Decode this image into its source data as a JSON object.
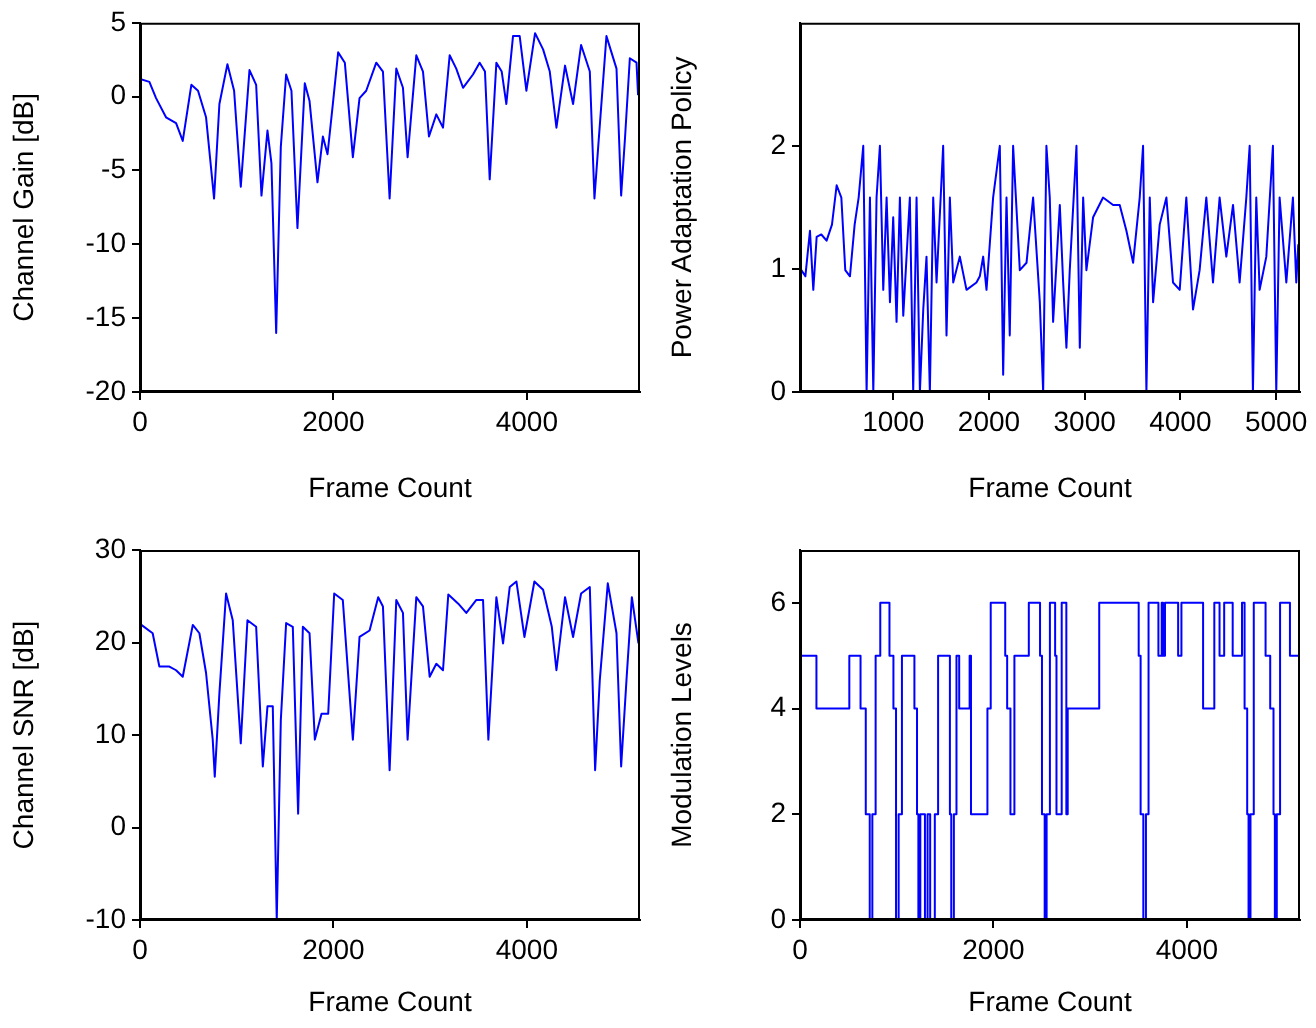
{
  "chart_data": [
    {
      "type": "line",
      "xlabel": "Frame Count",
      "ylabel": "Channel Gain [dB]",
      "marker": "none",
      "xlim": [
        0,
        5170
      ],
      "ylim": [
        -20,
        5
      ],
      "xticks": [
        0,
        2000,
        4000
      ],
      "yticks": [
        -20,
        -15,
        -10,
        -5,
        0,
        5
      ],
      "series": [
        {
          "color": "#0000ff",
          "x": [
            0,
            97,
            166,
            269,
            373,
            442,
            531,
            600,
            683,
            766,
            821,
            904,
            973,
            1042,
            1132,
            1201,
            1256,
            1318,
            1359,
            1408,
            1456,
            1511,
            1566,
            1628,
            1704,
            1753,
            1835,
            1891,
            1939,
            1994,
            2049,
            2118,
            2201,
            2270,
            2339,
            2443,
            2512,
            2581,
            2650,
            2719,
            2767,
            2857,
            2926,
            2988,
            3064,
            3133,
            3202,
            3270,
            3340,
            3443,
            3512,
            3567,
            3616,
            3685,
            3740,
            3788,
            3857,
            3926,
            3995,
            4085,
            4168,
            4237,
            4306,
            4395,
            4478,
            4561,
            4651,
            4699,
            4740,
            4823,
            4927,
            4975,
            5016,
            5065,
            5134,
            5150
          ],
          "values": [
            1.2,
            1.0,
            -0.1,
            -1.4,
            -1.8,
            -3.0,
            0.8,
            0.4,
            -1.4,
            -6.9,
            -0.5,
            2.2,
            0.4,
            -6.1,
            1.8,
            0.8,
            -6.7,
            -2.3,
            -4.5,
            -16,
            -3.4,
            1.5,
            0.4,
            -8.9,
            0.9,
            -0.3,
            -5.8,
            -2.7,
            -3.9,
            -0.5,
            3.0,
            2.3,
            -4.1,
            -0.1,
            0.4,
            2.3,
            1.7,
            -6.9,
            1.9,
            0.6,
            -4.1,
            2.8,
            1.7,
            -2.7,
            -1.2,
            -2.1,
            2.8,
            1.9,
            0.6,
            1.5,
            2.3,
            1.7,
            -5.6,
            2.3,
            1.7,
            -0.5,
            4.1,
            4.1,
            0.4,
            4.3,
            3.2,
            1.7,
            -2.1,
            2.1,
            -0.5,
            3.5,
            1.7,
            -6.9,
            -3.2,
            4.1,
            1.9,
            -6.7,
            -2.7,
            2.6,
            2.3,
            0.1
          ]
        }
      ]
    },
    {
      "type": "line",
      "xlabel": "Frame Count",
      "ylabel": "Power Adaptation Policy",
      "marker": "none",
      "xlim": [
        25,
        5250
      ],
      "ylim": [
        0,
        3
      ],
      "xticks": [
        1000,
        2000,
        3000,
        4000,
        5000
      ],
      "yticks": [
        0,
        1,
        2
      ],
      "series": [
        {
          "color": "#0000ff",
          "x": [
            39,
            81,
            129,
            164,
            199,
            248,
            303,
            359,
            408,
            457,
            498,
            547,
            596,
            638,
            686,
            721,
            756,
            791,
            825,
            860,
            895,
            930,
            965,
            999,
            1034,
            1069,
            1104,
            1173,
            1208,
            1243,
            1278,
            1313,
            1347,
            1382,
            1417,
            1452,
            1521,
            1556,
            1591,
            1626,
            1695,
            1765,
            1869,
            1904,
            1939,
            1974,
            2043,
            2113,
            2148,
            2183,
            2217,
            2252,
            2322,
            2392,
            2461,
            2531,
            2566,
            2600,
            2635,
            2670,
            2740,
            2775,
            2809,
            2844,
            2914,
            2949,
            2984,
            3018,
            3088,
            3192,
            3297,
            3366,
            3436,
            3506,
            3575,
            3610,
            3645,
            3680,
            3715,
            3784,
            3854,
            3923,
            3993,
            4062,
            4132,
            4201,
            4271,
            4341,
            4410,
            4480,
            4550,
            4619,
            4689,
            4724,
            4758,
            4793,
            4828,
            4898,
            4967,
            5002,
            5037,
            5107,
            5176,
            5211,
            5232
          ],
          "values": [
            0.99,
            0.94,
            1.31,
            0.83,
            1.26,
            1.28,
            1.23,
            1.36,
            1.68,
            1.58,
            0.99,
            0.94,
            1.36,
            1.58,
            2,
            0,
            1.58,
            0,
            1.58,
            2,
            0.83,
            1.58,
            0.73,
            1.42,
            0.57,
            1.58,
            0.62,
            1.58,
            0,
            1.58,
            0,
            0.67,
            1.1,
            0,
            1.58,
            0.89,
            2,
            0.46,
            1.58,
            0.89,
            1.1,
            0.83,
            0.89,
            0.94,
            1.1,
            0.83,
            1.58,
            2,
            0.14,
            1.58,
            0.46,
            2,
            0.99,
            1.05,
            1.58,
            0.73,
            0,
            2,
            1.58,
            0.57,
            1.52,
            0.89,
            0.36,
            0.99,
            2,
            0.36,
            1.58,
            0.99,
            1.42,
            1.58,
            1.52,
            1.52,
            1.31,
            1.05,
            1.58,
            2,
            0,
            1.58,
            0.73,
            1.36,
            1.58,
            0.89,
            0.83,
            1.58,
            0.67,
            0.99,
            1.58,
            0.89,
            1.58,
            1.1,
            1.52,
            0.89,
            1.58,
            2,
            0,
            1.58,
            0.83,
            1.1,
            2,
            0,
            1.58,
            0.89,
            1.58,
            0.89,
            1.2
          ]
        }
      ]
    },
    {
      "type": "line",
      "xlabel": "Frame Count",
      "ylabel": "Channel SNR [dB]",
      "marker": "none",
      "xlim": [
        0,
        5170
      ],
      "ylim": [
        -10,
        30
      ],
      "xticks": [
        0,
        2000,
        4000
      ],
      "yticks": [
        -10,
        0,
        10,
        20,
        30
      ],
      "series": [
        {
          "color": "#0000ff",
          "x": [
            14,
            131,
            200,
            304,
            373,
            442,
            546,
            614,
            683,
            752,
            773,
            821,
            890,
            959,
            1042,
            1111,
            1201,
            1270,
            1318,
            1373,
            1414,
            1456,
            1511,
            1580,
            1635,
            1684,
            1753,
            1808,
            1877,
            1946,
            2008,
            2097,
            2201,
            2270,
            2374,
            2463,
            2512,
            2581,
            2650,
            2719,
            2767,
            2857,
            2926,
            2995,
            3064,
            3133,
            3188,
            3291,
            3374,
            3478,
            3547,
            3602,
            3685,
            3754,
            3823,
            3892,
            3975,
            4078,
            4168,
            4258,
            4306,
            4395,
            4478,
            4561,
            4651,
            4706,
            4754,
            4837,
            4927,
            4975,
            5030,
            5086,
            5154
          ],
          "values": [
            21.9,
            21.0,
            17.4,
            17.4,
            17.0,
            16.3,
            21.9,
            21.0,
            16.7,
            9.5,
            5.5,
            14.5,
            25.3,
            22.4,
            9.1,
            22.4,
            21.7,
            6.6,
            13.1,
            13.1,
            -10,
            11.6,
            22.1,
            21.7,
            1.5,
            21.7,
            21.0,
            9.5,
            12.3,
            12.3,
            25.3,
            24.6,
            9.5,
            20.6,
            21.3,
            24.9,
            23.9,
            6.2,
            24.6,
            23.2,
            9.5,
            24.9,
            23.9,
            16.3,
            17.7,
            17.0,
            25.2,
            24.2,
            23.2,
            24.6,
            24.6,
            9.5,
            24.9,
            19.9,
            26.0,
            26.6,
            20.6,
            26.6,
            25.7,
            21.7,
            17.0,
            24.9,
            20.6,
            25.3,
            26.0,
            6.2,
            15.9,
            26.4,
            21.0,
            6.6,
            15.9,
            24.9,
            19.9
          ]
        }
      ]
    },
    {
      "type": "step",
      "xlabel": "Frame Count",
      "ylabel": "Modulation Levels",
      "marker": "none",
      "xlim": [
        0,
        5170
      ],
      "ylim": [
        0,
        7
      ],
      "xticks": [
        0,
        2000,
        4000
      ],
      "yticks": [
        0,
        2,
        4,
        6
      ],
      "series": [
        {
          "color": "#0000ff",
          "x": [
            0,
            170,
            510,
            626,
            680,
            721,
            748,
            782,
            830,
            925,
            966,
            993,
            1020,
            1054,
            1183,
            1210,
            1224,
            1244,
            1292,
            1319,
            1346,
            1394,
            1428,
            1550,
            1564,
            1591,
            1618,
            1646,
            1754,
            1768,
            1938,
            1972,
            2122,
            2142,
            2176,
            2217,
            2366,
            2482,
            2502,
            2530,
            2550,
            2584,
            2638,
            2652,
            2706,
            2754,
            2768,
            3094,
            3502,
            3522,
            3550,
            3577,
            3604,
            3706,
            3740,
            3754,
            3774,
            3910,
            3944,
            4168,
            4284,
            4338,
            4386,
            4474,
            4570,
            4597,
            4624,
            4638,
            4658,
            4692,
            4814,
            4862,
            4896,
            4910,
            4930,
            4964,
            5066,
            5170
          ],
          "values": [
            5,
            4,
            5,
            4,
            2,
            0,
            2,
            5,
            6,
            5,
            4,
            0,
            2,
            5,
            4,
            2,
            0,
            2,
            0,
            2,
            0,
            2,
            5,
            2,
            0,
            2,
            5,
            4,
            5,
            2,
            4,
            6,
            5,
            4,
            2,
            5,
            6,
            5,
            2,
            0,
            2,
            6,
            5,
            2,
            6,
            2,
            4,
            6,
            5,
            2,
            0,
            2,
            6,
            5,
            6,
            5,
            6,
            5,
            6,
            4,
            6,
            5,
            6,
            5,
            6,
            4,
            2,
            0,
            2,
            6,
            5,
            4,
            2,
            0,
            2,
            6,
            5,
            5
          ]
        }
      ]
    }
  ]
}
